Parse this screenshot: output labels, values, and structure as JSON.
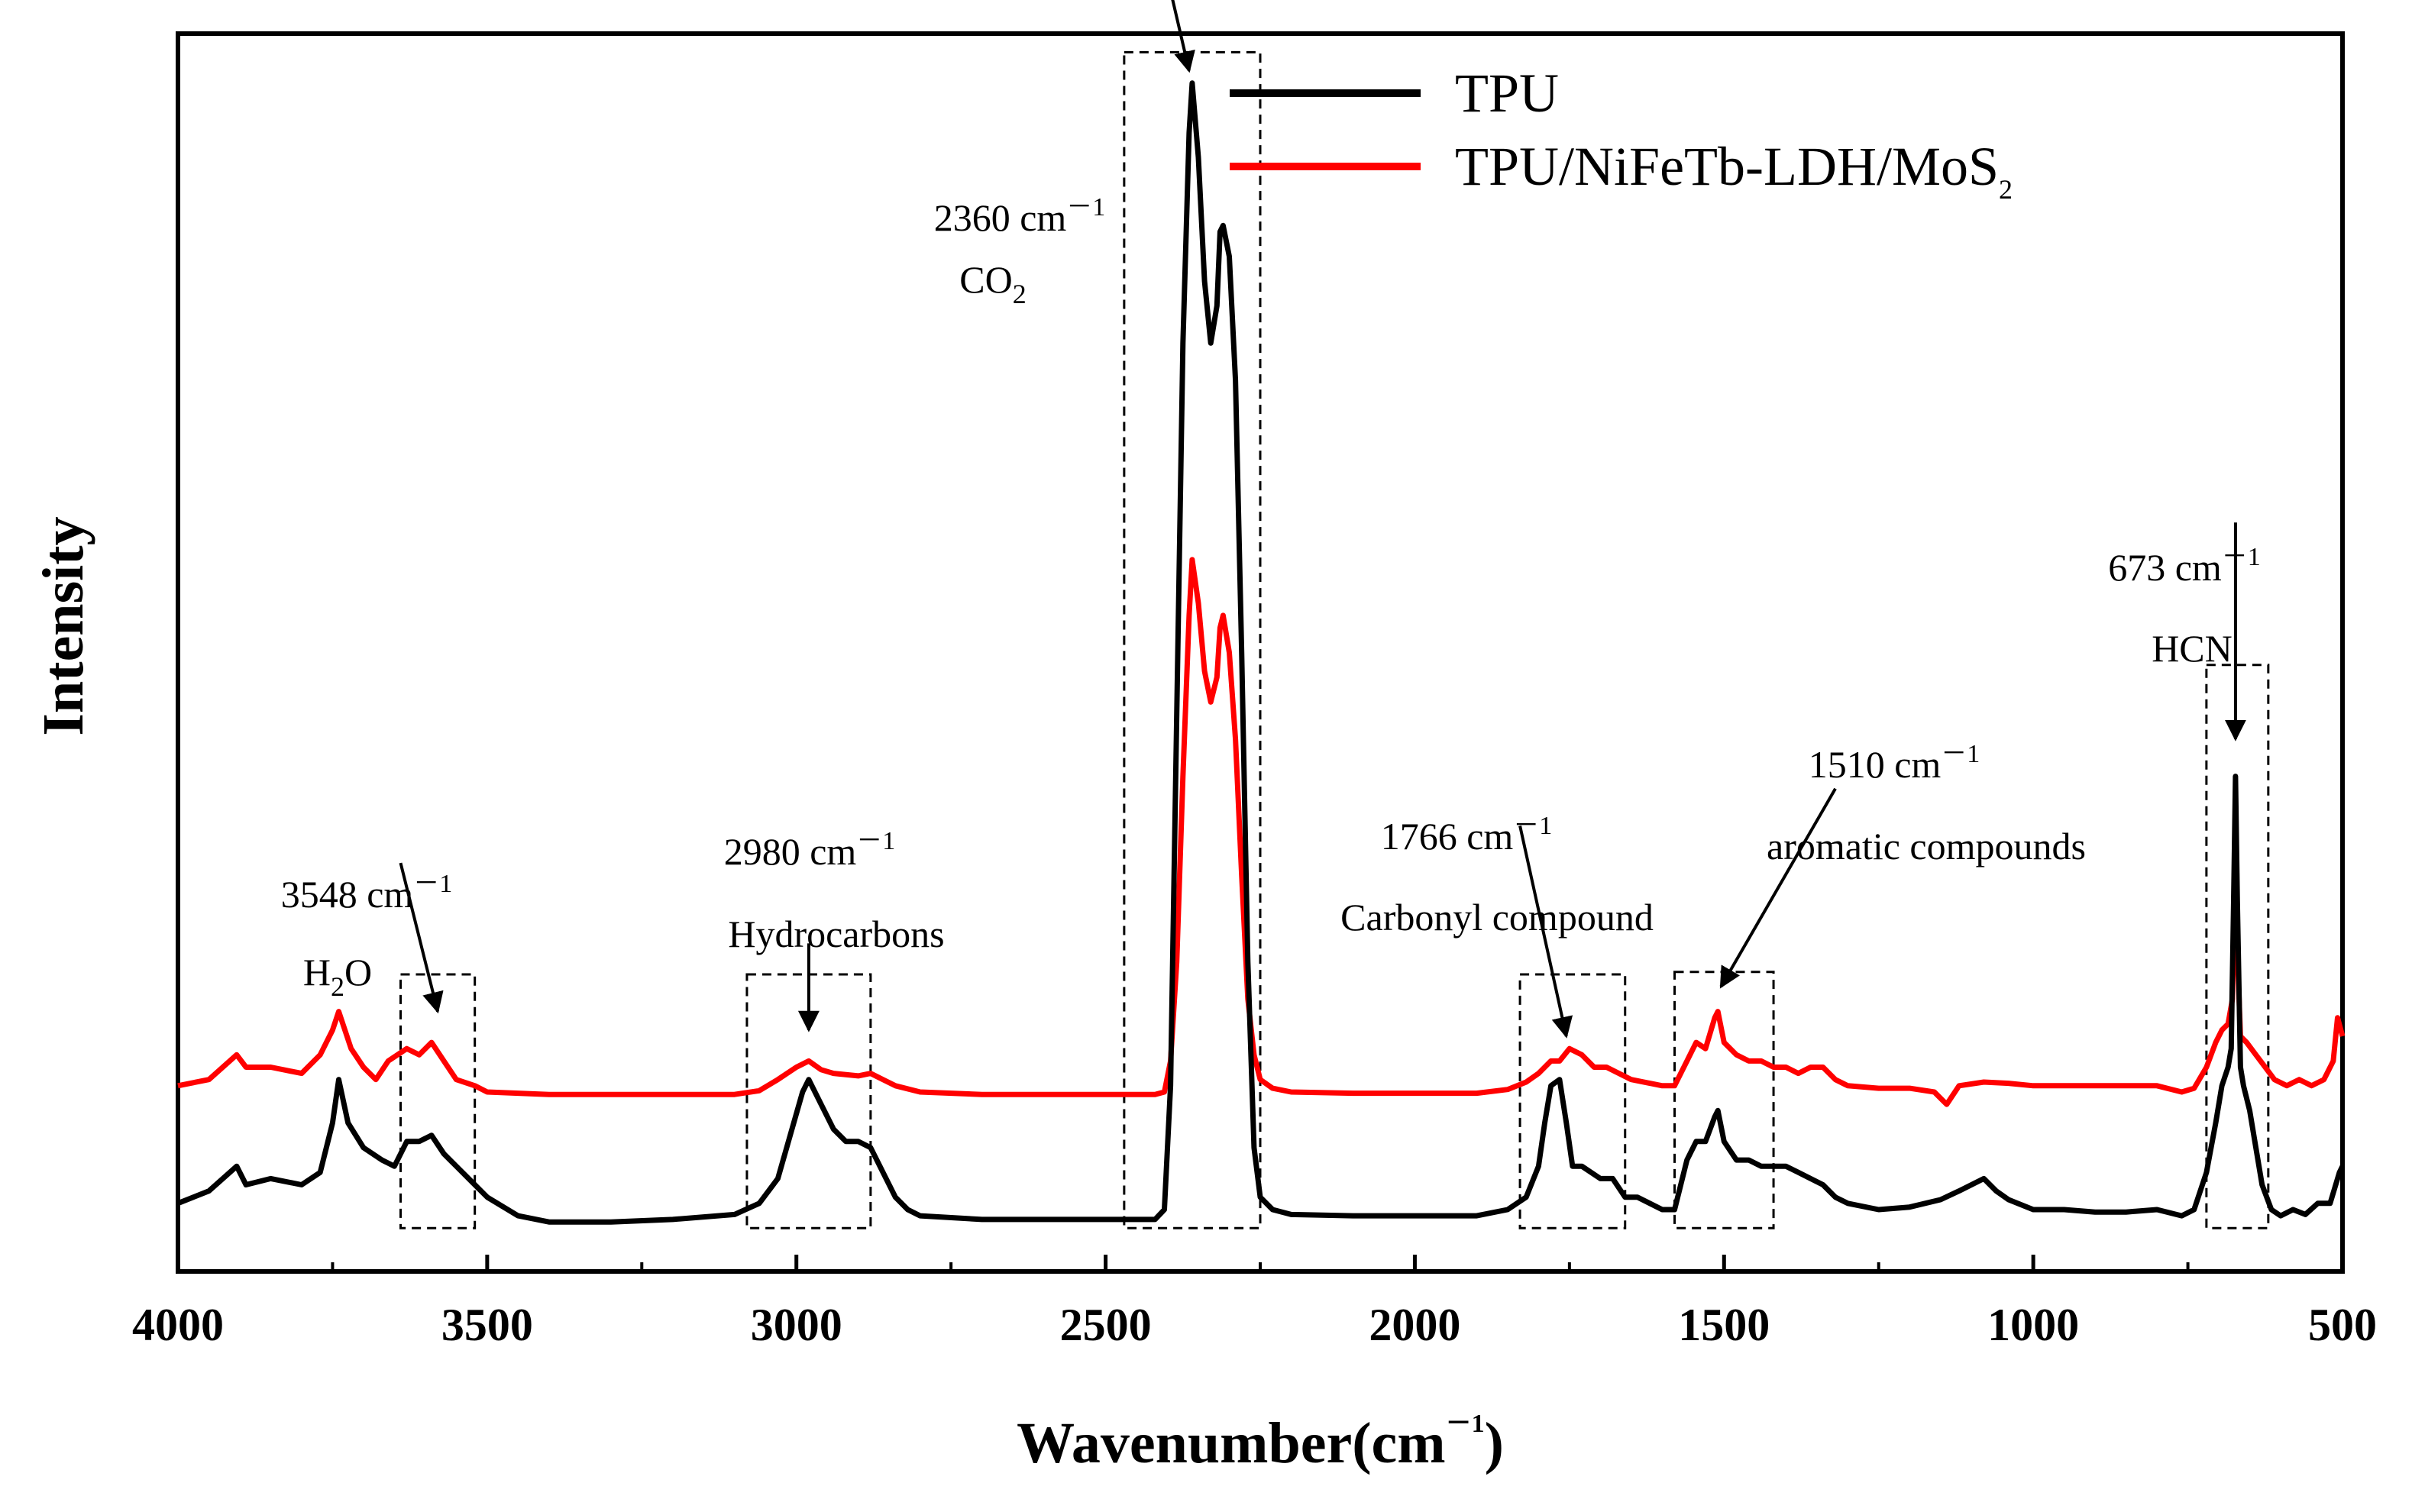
{
  "chart_data": {
    "type": "line",
    "title": "",
    "xlabel": "Wavenumber(cm",
    "xlabel_sup": "－1",
    "xlabel_close": ")",
    "ylabel": "Intensity",
    "xlim": [
      4000,
      500
    ],
    "ylim": [
      0,
      100
    ],
    "x_reversed": true,
    "x_ticks": [
      4000,
      3500,
      3000,
      2500,
      2000,
      1500,
      1000,
      500
    ],
    "y_ticks_shown": false,
    "grid": false,
    "legend_position": "top-right",
    "series": [
      {
        "name": "TPU",
        "color": "#000000",
        "points": [
          [
            4000,
            5.5
          ],
          [
            3950,
            6.5
          ],
          [
            3905,
            8.5
          ],
          [
            3890,
            7.0
          ],
          [
            3850,
            7.5
          ],
          [
            3800,
            7.0
          ],
          [
            3770,
            8.0
          ],
          [
            3750,
            12.0
          ],
          [
            3740,
            15.5
          ],
          [
            3725,
            12.0
          ],
          [
            3700,
            10.0
          ],
          [
            3670,
            9.0
          ],
          [
            3650,
            8.5
          ],
          [
            3630,
            10.5
          ],
          [
            3610,
            10.5
          ],
          [
            3590,
            11.0
          ],
          [
            3570,
            9.5
          ],
          [
            3550,
            8.5
          ],
          [
            3520,
            7.0
          ],
          [
            3500,
            6.0
          ],
          [
            3450,
            4.5
          ],
          [
            3400,
            4.0
          ],
          [
            3300,
            4.0
          ],
          [
            3200,
            4.2
          ],
          [
            3100,
            4.6
          ],
          [
            3060,
            5.5
          ],
          [
            3030,
            7.5
          ],
          [
            3010,
            11.0
          ],
          [
            2990,
            14.5
          ],
          [
            2980,
            15.5
          ],
          [
            2960,
            13.5
          ],
          [
            2940,
            11.5
          ],
          [
            2920,
            10.5
          ],
          [
            2900,
            10.5
          ],
          [
            2880,
            10.0
          ],
          [
            2860,
            8.0
          ],
          [
            2840,
            6.0
          ],
          [
            2820,
            5.0
          ],
          [
            2800,
            4.5
          ],
          [
            2700,
            4.2
          ],
          [
            2600,
            4.2
          ],
          [
            2500,
            4.2
          ],
          [
            2420,
            4.2
          ],
          [
            2405,
            5.0
          ],
          [
            2395,
            15.0
          ],
          [
            2385,
            45.0
          ],
          [
            2375,
            75.0
          ],
          [
            2365,
            92.0
          ],
          [
            2360,
            96.0
          ],
          [
            2350,
            90.0
          ],
          [
            2340,
            80.0
          ],
          [
            2330,
            75.0
          ],
          [
            2320,
            78.0
          ],
          [
            2315,
            84.0
          ],
          [
            2310,
            84.5
          ],
          [
            2300,
            82.0
          ],
          [
            2290,
            72.0
          ],
          [
            2280,
            50.0
          ],
          [
            2270,
            25.0
          ],
          [
            2260,
            10.0
          ],
          [
            2250,
            6.0
          ],
          [
            2230,
            5.0
          ],
          [
            2200,
            4.6
          ],
          [
            2100,
            4.5
          ],
          [
            2000,
            4.5
          ],
          [
            1900,
            4.5
          ],
          [
            1850,
            5.0
          ],
          [
            1820,
            6.0
          ],
          [
            1800,
            8.5
          ],
          [
            1790,
            12.0
          ],
          [
            1780,
            15.0
          ],
          [
            1766,
            15.5
          ],
          [
            1755,
            12.0
          ],
          [
            1745,
            8.5
          ],
          [
            1730,
            8.5
          ],
          [
            1700,
            7.5
          ],
          [
            1680,
            7.5
          ],
          [
            1660,
            6.0
          ],
          [
            1640,
            6.0
          ],
          [
            1600,
            5.0
          ],
          [
            1580,
            5.0
          ],
          [
            1560,
            9.0
          ],
          [
            1545,
            10.5
          ],
          [
            1530,
            10.5
          ],
          [
            1515,
            12.5
          ],
          [
            1510,
            13.0
          ],
          [
            1500,
            10.5
          ],
          [
            1480,
            9.0
          ],
          [
            1460,
            9.0
          ],
          [
            1440,
            8.5
          ],
          [
            1420,
            8.5
          ],
          [
            1400,
            8.5
          ],
          [
            1380,
            8.0
          ],
          [
            1360,
            7.5
          ],
          [
            1340,
            7.0
          ],
          [
            1320,
            6.0
          ],
          [
            1300,
            5.5
          ],
          [
            1250,
            5.0
          ],
          [
            1200,
            5.2
          ],
          [
            1150,
            5.8
          ],
          [
            1120,
            6.5
          ],
          [
            1100,
            7.0
          ],
          [
            1080,
            7.5
          ],
          [
            1060,
            6.5
          ],
          [
            1040,
            5.8
          ],
          [
            1000,
            5.0
          ],
          [
            950,
            5.0
          ],
          [
            900,
            4.8
          ],
          [
            850,
            4.8
          ],
          [
            800,
            5.0
          ],
          [
            760,
            4.5
          ],
          [
            740,
            5.0
          ],
          [
            720,
            8.0
          ],
          [
            705,
            12.0
          ],
          [
            695,
            15.0
          ],
          [
            685,
            16.5
          ],
          [
            680,
            18.0
          ],
          [
            676,
            30.0
          ],
          [
            673,
            40.0
          ],
          [
            670,
            30.0
          ],
          [
            665,
            16.5
          ],
          [
            660,
            15.0
          ],
          [
            650,
            13.0
          ],
          [
            640,
            10.0
          ],
          [
            630,
            7.0
          ],
          [
            615,
            5.0
          ],
          [
            600,
            4.5
          ],
          [
            580,
            5.0
          ],
          [
            560,
            4.6
          ],
          [
            540,
            5.5
          ],
          [
            520,
            5.5
          ],
          [
            505,
            8.0
          ],
          [
            500,
            8.5
          ]
        ]
      },
      {
        "name": "TPU/NiFeTb-LDH/MoS",
        "name_sub": "2",
        "color": "#ff0000",
        "points": [
          [
            4000,
            15.0
          ],
          [
            3950,
            15.5
          ],
          [
            3905,
            17.5
          ],
          [
            3890,
            16.5
          ],
          [
            3850,
            16.5
          ],
          [
            3800,
            16.0
          ],
          [
            3770,
            17.5
          ],
          [
            3750,
            19.5
          ],
          [
            3740,
            21.0
          ],
          [
            3720,
            18.0
          ],
          [
            3700,
            16.5
          ],
          [
            3680,
            15.5
          ],
          [
            3660,
            17.0
          ],
          [
            3630,
            18.0
          ],
          [
            3610,
            17.5
          ],
          [
            3590,
            18.5
          ],
          [
            3570,
            17.0
          ],
          [
            3550,
            15.5
          ],
          [
            3520,
            15.0
          ],
          [
            3500,
            14.5
          ],
          [
            3400,
            14.3
          ],
          [
            3300,
            14.3
          ],
          [
            3200,
            14.3
          ],
          [
            3100,
            14.3
          ],
          [
            3060,
            14.6
          ],
          [
            3030,
            15.5
          ],
          [
            3000,
            16.5
          ],
          [
            2980,
            17.0
          ],
          [
            2960,
            16.3
          ],
          [
            2940,
            16.0
          ],
          [
            2900,
            15.8
          ],
          [
            2880,
            16.0
          ],
          [
            2860,
            15.5
          ],
          [
            2840,
            15.0
          ],
          [
            2800,
            14.5
          ],
          [
            2700,
            14.3
          ],
          [
            2600,
            14.3
          ],
          [
            2500,
            14.3
          ],
          [
            2420,
            14.3
          ],
          [
            2405,
            14.5
          ],
          [
            2395,
            17.0
          ],
          [
            2385,
            25.0
          ],
          [
            2375,
            40.0
          ],
          [
            2365,
            53.0
          ],
          [
            2360,
            57.5
          ],
          [
            2350,
            54.0
          ],
          [
            2340,
            48.5
          ],
          [
            2330,
            46.0
          ],
          [
            2320,
            48.0
          ],
          [
            2315,
            52.0
          ],
          [
            2310,
            53.0
          ],
          [
            2300,
            50.0
          ],
          [
            2290,
            43.0
          ],
          [
            2280,
            32.0
          ],
          [
            2270,
            22.0
          ],
          [
            2260,
            17.5
          ],
          [
            2250,
            15.5
          ],
          [
            2230,
            14.8
          ],
          [
            2200,
            14.5
          ],
          [
            2100,
            14.4
          ],
          [
            2000,
            14.4
          ],
          [
            1900,
            14.4
          ],
          [
            1850,
            14.7
          ],
          [
            1820,
            15.3
          ],
          [
            1800,
            16.0
          ],
          [
            1780,
            17.0
          ],
          [
            1766,
            17.0
          ],
          [
            1750,
            18.0
          ],
          [
            1730,
            17.5
          ],
          [
            1710,
            16.5
          ],
          [
            1690,
            16.5
          ],
          [
            1670,
            16.0
          ],
          [
            1650,
            15.5
          ],
          [
            1600,
            15.0
          ],
          [
            1580,
            15.0
          ],
          [
            1560,
            17.0
          ],
          [
            1545,
            18.5
          ],
          [
            1530,
            18.0
          ],
          [
            1515,
            20.5
          ],
          [
            1510,
            21.0
          ],
          [
            1500,
            18.5
          ],
          [
            1480,
            17.5
          ],
          [
            1460,
            17.0
          ],
          [
            1440,
            17.0
          ],
          [
            1420,
            16.5
          ],
          [
            1400,
            16.5
          ],
          [
            1380,
            16.0
          ],
          [
            1360,
            16.5
          ],
          [
            1340,
            16.5
          ],
          [
            1320,
            15.5
          ],
          [
            1300,
            15.0
          ],
          [
            1250,
            14.8
          ],
          [
            1200,
            14.8
          ],
          [
            1160,
            14.5
          ],
          [
            1140,
            13.5
          ],
          [
            1120,
            15.0
          ],
          [
            1080,
            15.3
          ],
          [
            1040,
            15.2
          ],
          [
            1000,
            15.0
          ],
          [
            950,
            15.0
          ],
          [
            900,
            15.0
          ],
          [
            850,
            15.0
          ],
          [
            800,
            15.0
          ],
          [
            760,
            14.5
          ],
          [
            740,
            14.8
          ],
          [
            720,
            16.5
          ],
          [
            705,
            18.5
          ],
          [
            695,
            19.5
          ],
          [
            685,
            20.0
          ],
          [
            678,
            22.0
          ],
          [
            675,
            30.0
          ],
          [
            673,
            33.0
          ],
          [
            670,
            26.0
          ],
          [
            665,
            19.0
          ],
          [
            655,
            18.5
          ],
          [
            640,
            17.5
          ],
          [
            625,
            16.5
          ],
          [
            610,
            15.5
          ],
          [
            590,
            15.0
          ],
          [
            570,
            15.5
          ],
          [
            550,
            15.0
          ],
          [
            530,
            15.5
          ],
          [
            515,
            17.0
          ],
          [
            508,
            20.5
          ],
          [
            500,
            19.0
          ]
        ]
      }
    ],
    "highlight_boxes": [
      {
        "x1": 3640,
        "x2": 3520,
        "y1": 3.5,
        "y2": 24.0
      },
      {
        "x1": 3080,
        "x2": 2880,
        "y1": 3.5,
        "y2": 24.0
      },
      {
        "x1": 2470,
        "x2": 2250,
        "y1": 3.5,
        "y2": 98.5
      },
      {
        "x1": 1830,
        "x2": 1660,
        "y1": 3.5,
        "y2": 24.0
      },
      {
        "x1": 1580,
        "x2": 1420,
        "y1": 3.5,
        "y2": 24.2
      },
      {
        "x1": 720,
        "x2": 620,
        "y1": 3.5,
        "y2": 49.0
      }
    ],
    "annotations": [
      {
        "id": "h2o",
        "wavenumber": "3548 cm",
        "wavenumber_sup": "－1",
        "label": "H",
        "label_sub": "2",
        "label_tail": "O",
        "arrow_from": [
          3640,
          33.0
        ],
        "arrow_to": [
          3580,
          21.0
        ]
      },
      {
        "id": "hydrocarbons",
        "wavenumber": "2980 cm",
        "wavenumber_sup": "－1",
        "label": "Hydrocarbons",
        "arrow_from": [
          2980,
          26.5
        ],
        "arrow_to": [
          2980,
          19.5
        ]
      },
      {
        "id": "co2",
        "wavenumber": "2360 cm",
        "wavenumber_sup": "－1",
        "label": "CO",
        "label_sub": "2",
        "arrow_from": [
          2430,
          111.0
        ],
        "arrow_to": [
          2365,
          97.0
        ]
      },
      {
        "id": "carbonyl",
        "wavenumber": "1766 cm",
        "wavenumber_sup": "－1",
        "label": "Carbonyl compound",
        "arrow_from": [
          1830,
          36.0
        ],
        "arrow_to": [
          1755,
          19.0
        ]
      },
      {
        "id": "aromatic",
        "wavenumber": "1510 cm",
        "wavenumber_sup": "－1",
        "label": "aromatic compounds",
        "arrow_from": [
          1320,
          39.0
        ],
        "arrow_to": [
          1505,
          23.0
        ]
      },
      {
        "id": "hcn",
        "wavenumber": "673 cm",
        "wavenumber_sup": "－1",
        "label": "HCN",
        "arrow_from": [
          673,
          60.5
        ],
        "arrow_to": [
          673,
          43.0
        ]
      }
    ]
  }
}
